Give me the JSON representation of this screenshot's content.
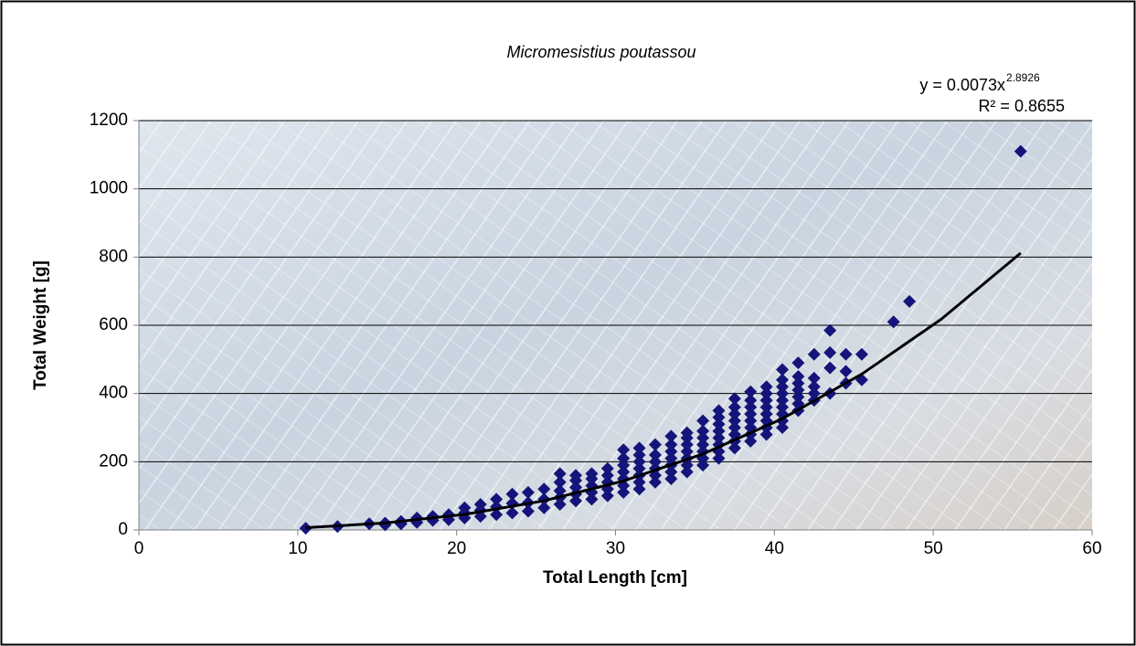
{
  "chart_data": {
    "type": "scatter",
    "title": "Micromesistius poutassou",
    "x_label": "Total Length [cm]",
    "y_label": "Total Weight [g]",
    "equation": "y = 0.0073x",
    "equation_exponent": "2.8926",
    "r_squared": "R² = 0.8655",
    "xlim": [
      0,
      60
    ],
    "xticks": [
      0,
      10,
      20,
      30,
      40,
      50,
      60
    ],
    "ylim": [
      0,
      1200
    ],
    "yticks": [
      0,
      200,
      400,
      600,
      800,
      1000,
      1200
    ],
    "grid": true,
    "series": [
      {
        "color": "#14147a",
        "x": [
          10.5,
          12.5,
          14.5,
          15.5,
          15.5,
          16.5,
          16.5,
          17.5,
          17.5,
          18.5,
          18.5,
          19.5,
          19.5,
          20.5,
          20.5,
          20.5,
          21.5,
          21.5,
          21.5,
          22.5,
          22.5,
          22.5,
          23.5,
          23.5,
          23.5,
          24.5,
          24.5,
          24.5,
          25.5,
          25.5,
          25.5,
          26.5,
          26.5,
          26.5,
          26.5,
          26.5,
          27.5,
          27.5,
          27.5,
          27.5,
          27.5,
          28.5,
          28.5,
          28.5,
          28.5,
          28.5,
          29.5,
          29.5,
          29.5,
          29.5,
          29.5,
          30.5,
          30.5,
          30.5,
          30.5,
          30.5,
          30.5,
          30.5,
          31.5,
          31.5,
          31.5,
          31.5,
          31.5,
          31.5,
          31.5,
          32.5,
          32.5,
          32.5,
          32.5,
          32.5,
          32.5,
          33.5,
          33.5,
          33.5,
          33.5,
          33.5,
          33.5,
          33.5,
          34.5,
          34.5,
          34.5,
          34.5,
          34.5,
          34.5,
          34.5,
          35.5,
          35.5,
          35.5,
          35.5,
          35.5,
          35.5,
          35.5,
          36.5,
          36.5,
          36.5,
          36.5,
          36.5,
          36.5,
          36.5,
          36.5,
          37.5,
          37.5,
          37.5,
          37.5,
          37.5,
          37.5,
          37.5,
          37.5,
          38.5,
          38.5,
          38.5,
          38.5,
          38.5,
          38.5,
          38.5,
          38.5,
          39.5,
          39.5,
          39.5,
          39.5,
          39.5,
          39.5,
          39.5,
          39.5,
          40.5,
          40.5,
          40.5,
          40.5,
          40.5,
          40.5,
          40.5,
          40.5,
          40.5,
          41.5,
          41.5,
          41.5,
          41.5,
          41.5,
          41.5,
          41.5,
          42.5,
          42.5,
          42.5,
          42.5,
          42.5,
          43.5,
          43.5,
          43.5,
          43.5,
          44.5,
          44.5,
          44.5,
          45.5,
          45.5,
          47.5,
          48.5,
          55.5
        ],
        "values": [
          5,
          10,
          18,
          15,
          20,
          18,
          25,
          22,
          35,
          28,
          40,
          30,
          45,
          35,
          50,
          65,
          40,
          58,
          75,
          45,
          68,
          90,
          50,
          78,
          105,
          55,
          80,
          110,
          65,
          90,
          120,
          75,
          95,
          115,
          140,
          165,
          85,
          105,
          125,
          145,
          160,
          90,
          110,
          130,
          150,
          165,
          100,
          120,
          140,
          160,
          180,
          110,
          130,
          150,
          170,
          190,
          210,
          235,
          120,
          140,
          160,
          180,
          200,
          220,
          240,
          140,
          160,
          180,
          200,
          220,
          250,
          150,
          170,
          190,
          210,
          230,
          250,
          275,
          170,
          190,
          210,
          230,
          250,
          270,
          285,
          190,
          210,
          230,
          250,
          270,
          290,
          320,
          210,
          230,
          250,
          270,
          290,
          310,
          330,
          350,
          240,
          260,
          280,
          300,
          320,
          340,
          360,
          385,
          260,
          280,
          300,
          320,
          340,
          360,
          380,
          405,
          280,
          300,
          320,
          340,
          360,
          380,
          400,
          420,
          300,
          320,
          340,
          360,
          380,
          400,
          420,
          440,
          470,
          350,
          370,
          390,
          410,
          430,
          450,
          490,
          380,
          400,
          420,
          445,
          515,
          400,
          475,
          520,
          585,
          430,
          465,
          515,
          440,
          515,
          610,
          670,
          1110
        ]
      }
    ],
    "trendline": {
      "color": "#000000",
      "x": [
        10.5,
        15.5,
        20.5,
        25.5,
        30.5,
        35.5,
        40.5,
        45.5,
        50.5,
        55.5
      ],
      "values": [
        6.6,
        20.3,
        45.5,
        85.6,
        143.6,
        222.8,
        326.2,
        456.9,
        617.8,
        811.6
      ]
    }
  }
}
